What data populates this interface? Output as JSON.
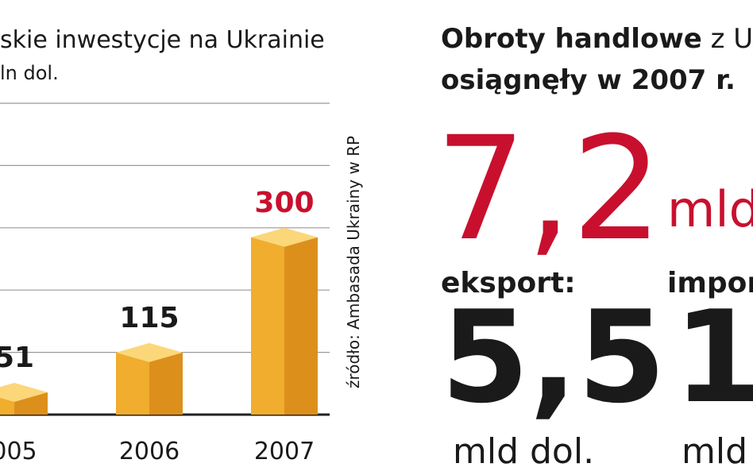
{
  "chart_data": {
    "type": "bar",
    "title": "skie inwestycje na Ukrainie",
    "subtitle": "ln dol.",
    "categories": [
      "005",
      "2006",
      "2007"
    ],
    "values": [
      51,
      115,
      300
    ],
    "ylim": [
      0,
      500
    ],
    "gridlines": [
      100,
      200,
      300,
      400,
      500
    ],
    "colors": {
      "front": "#f0ad2e",
      "side": "#dd8f1c",
      "top": "#fbd77a"
    },
    "highlight_color": "#c8102e",
    "source": "źródło: Ambasada Ukrainy w RP"
  },
  "infobox": {
    "heading_bold": "Obroty handlowe",
    "heading_rest": " z U",
    "heading_line2": "osiągnęły w 2007 r.",
    "total": "7,2",
    "total_unit": "mld",
    "export_label": "eksport:",
    "export_value": "5,5",
    "export_unit": "mld dol.",
    "import_label": "impor",
    "import_value": "1,",
    "import_unit": "mld"
  }
}
